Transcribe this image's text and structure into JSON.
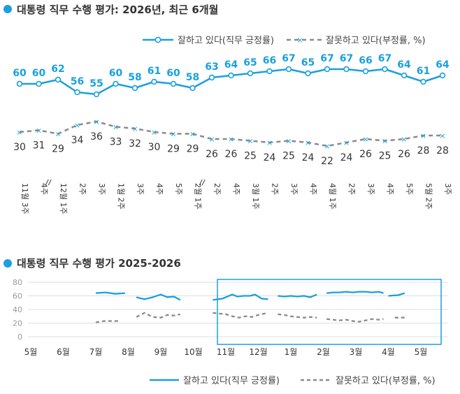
{
  "colors": {
    "approve": "#1aa0e0",
    "disapprove": "#8a8a8a",
    "box": "#1aa0e0",
    "accent": "#1aa0e0"
  },
  "chart1": {
    "title": "대통령 직무 수행 평가: 2026년, 최근 6개월",
    "legend_approve": "잘하고 있다(직무 긍정률)",
    "legend_disapprove": "잘못하고 있다(부정률, %)"
  },
  "chart2": {
    "title": "대통령 직무 수행 평가 2025-2026",
    "legend_approve": "잘하고 있다(직무 긍정률)",
    "legend_disapprove": "잘못하고 있다(부정률, %)"
  },
  "chart_data": [
    {
      "type": "line",
      "title": "대통령 직무 수행 평가: 2026년, 최근 6개월",
      "categories": [
        "11월 3주",
        "4주",
        "12월 1주",
        "2주",
        "3주",
        "1월 2주",
        "3주",
        "4주",
        "5주",
        "2월 1주",
        "2주",
        "4주",
        "3월 1주",
        "2주",
        "3주",
        "4주",
        "4월 1주",
        "2주",
        "3주",
        "4주",
        "5주",
        "5월 2주",
        "3주"
      ],
      "series": [
        {
          "name": "잘하고 있다(직무 긍정률)",
          "values": [
            60,
            60,
            62,
            56,
            55,
            60,
            58,
            61,
            60,
            58,
            63,
            64,
            65,
            66,
            67,
            65,
            67,
            67,
            66,
            67,
            64,
            61,
            64
          ]
        },
        {
          "name": "잘못하고 있다(부정률, %)",
          "values": [
            30,
            31,
            29,
            34,
            36,
            33,
            32,
            30,
            29,
            29,
            26,
            26,
            25,
            24,
            25,
            24,
            22,
            24,
            26,
            25,
            26,
            28,
            28
          ]
        }
      ],
      "breaks_after": [
        "4주",
        "2월 1주"
      ],
      "legend": "top-right"
    },
    {
      "type": "line",
      "title": "대통령 직무 수행 평가 2025-2026",
      "xlabels": [
        "5월",
        "6월",
        "7월",
        "8월",
        "9월",
        "10월",
        "11월",
        "12월",
        "1월",
        "2월",
        "3월",
        "4월",
        "5월"
      ],
      "ylim": [
        0,
        80
      ],
      "yticks": [
        0,
        20,
        40,
        60,
        80
      ],
      "grid": true,
      "highlight_range": [
        "11월",
        "5월"
      ],
      "legend": "bottom",
      "series": [
        {
          "name": "잘하고 있다(직무 긍정률)",
          "segments": [
            [
              [
                7.0,
                64
              ],
              [
                7.3,
                65
              ],
              [
                7.6,
                63
              ],
              [
                7.9,
                64
              ]
            ],
            [
              [
                8.25,
                58
              ],
              [
                8.5,
                55
              ],
              [
                8.75,
                58
              ],
              [
                9.0,
                62
              ],
              [
                9.2,
                58
              ],
              [
                9.4,
                59
              ],
              [
                9.6,
                54
              ]
            ],
            [
              [
                10.6,
                54
              ],
              [
                10.9,
                56
              ],
              [
                11.0,
                58
              ],
              [
                11.2,
                62
              ],
              [
                11.35,
                59
              ],
              [
                11.55,
                60
              ],
              [
                11.75,
                60
              ],
              [
                11.9,
                62
              ],
              [
                12.1,
                56
              ],
              [
                12.3,
                55
              ]
            ],
            [
              [
                12.6,
                60
              ],
              [
                12.8,
                59
              ],
              [
                13.0,
                60
              ],
              [
                13.2,
                59
              ],
              [
                13.4,
                60
              ],
              [
                13.6,
                58
              ],
              [
                13.8,
                62
              ]
            ],
            [
              [
                14.1,
                64
              ],
              [
                14.3,
                65
              ],
              [
                14.5,
                65
              ],
              [
                14.7,
                66
              ],
              [
                14.9,
                65
              ],
              [
                15.1,
                66
              ],
              [
                15.3,
                66
              ],
              [
                15.5,
                65
              ],
              [
                15.7,
                66
              ],
              [
                15.85,
                64
              ]
            ],
            [
              [
                16.0,
                60
              ],
              [
                16.3,
                61
              ],
              [
                16.5,
                64
              ]
            ]
          ]
        },
        {
          "name": "잘못하고 있다(부정률, %)",
          "segments": [
            [
              [
                7.0,
                21
              ],
              [
                7.25,
                23
              ],
              [
                7.5,
                23
              ],
              [
                7.75,
                23
              ]
            ],
            [
              [
                8.25,
                29
              ],
              [
                8.5,
                35
              ],
              [
                8.75,
                29
              ],
              [
                9.0,
                28
              ],
              [
                9.2,
                32
              ],
              [
                9.4,
                31
              ],
              [
                9.6,
                33
              ]
            ],
            [
              [
                10.6,
                35
              ],
              [
                10.8,
                34
              ],
              [
                11.0,
                33
              ],
              [
                11.2,
                30
              ],
              [
                11.4,
                28
              ],
              [
                11.6,
                30
              ],
              [
                11.8,
                29
              ],
              [
                12.0,
                32
              ],
              [
                12.3,
                35
              ]
            ],
            [
              [
                12.6,
                33
              ],
              [
                12.8,
                32
              ],
              [
                13.0,
                30
              ],
              [
                13.2,
                29
              ],
              [
                13.4,
                28
              ],
              [
                13.6,
                29
              ],
              [
                13.8,
                28
              ]
            ],
            [
              [
                14.1,
                26
              ],
              [
                14.3,
                25
              ],
              [
                14.5,
                24
              ],
              [
                14.7,
                25
              ],
              [
                14.9,
                23
              ],
              [
                15.1,
                22
              ],
              [
                15.3,
                24
              ],
              [
                15.5,
                26
              ],
              [
                15.7,
                25
              ],
              [
                15.85,
                26
              ]
            ],
            [
              [
                16.2,
                28
              ],
              [
                16.5,
                28
              ]
            ]
          ]
        }
      ]
    }
  ]
}
